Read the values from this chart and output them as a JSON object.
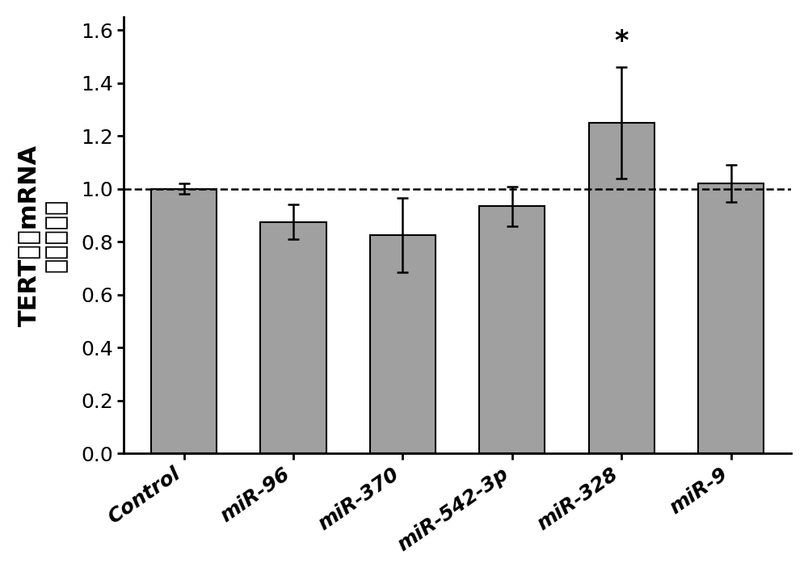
{
  "categories": [
    "Control",
    "miR-96",
    "miR-370",
    "miR-542-3p",
    "miR-328",
    "miR-9"
  ],
  "values": [
    1.0,
    0.875,
    0.825,
    0.935,
    1.25,
    1.02
  ],
  "errors": [
    0.02,
    0.065,
    0.14,
    0.075,
    0.21,
    0.07
  ],
  "bar_color": "#a0a0a0",
  "bar_edgecolor": "#000000",
  "bar_width": 0.6,
  "dashed_line_y": 1.0,
  "ylim": [
    0,
    1.65
  ],
  "yticks": [
    0,
    0.2,
    0.4,
    0.6,
    0.8,
    1.0,
    1.2,
    1.4,
    1.6
  ],
  "ylabel_part1": "TERT",
  "ylabel_chinese1": "基因",
  "ylabel_part2": "mRNA",
  "ylabel_chinese2": "表达的改变",
  "asterisk_bar_index": 4,
  "asterisk_text": "*",
  "figsize": [
    10.0,
    7.08
  ],
  "dpi": 100,
  "tick_fontsize": 18,
  "ylabel_fontsize": 22,
  "asterisk_fontsize": 24,
  "xlabel_rotation": 35,
  "background_color": "#ffffff",
  "bar_linewidth": 1.5,
  "spine_linewidth": 2.0,
  "error_linewidth": 1.8,
  "error_capsize": 5,
  "error_capthick": 1.8
}
